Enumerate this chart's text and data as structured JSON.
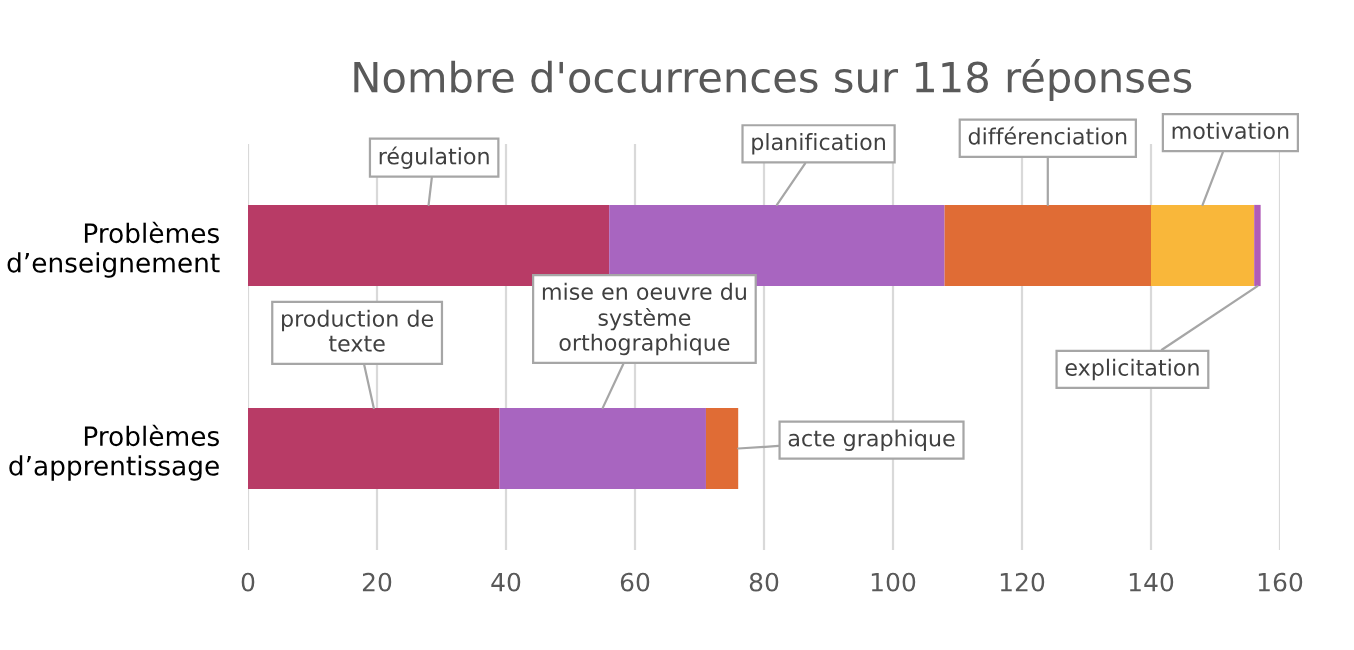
{
  "chart_data": {
    "type": "bar",
    "orientation": "horizontal",
    "stacked": true,
    "title": "Nombre d'occurrences sur 118 réponses",
    "categories": [
      "Problèmes\nd’enseignement",
      "Problèmes\nd’apprentissage"
    ],
    "series": [
      {
        "name": "régulation",
        "color": "#b83b66",
        "values": [
          56,
          null
        ]
      },
      {
        "name": "planification",
        "color": "#a865c0",
        "values": [
          52,
          null
        ]
      },
      {
        "name": "différenciation",
        "color": "#e06c35",
        "values": [
          32,
          null
        ]
      },
      {
        "name": "motivation",
        "color": "#f9b73a",
        "values": [
          16,
          null
        ]
      },
      {
        "name": "explicitation",
        "color": "#b05cb8",
        "values": [
          1,
          null
        ]
      },
      {
        "name": "production de\ntexte",
        "color": "#b83b66",
        "values": [
          null,
          39
        ]
      },
      {
        "name": "mise en oeuvre du\nsystème\northographique",
        "color": "#a865c0",
        "values": [
          null,
          32
        ]
      },
      {
        "name": "acte graphique",
        "color": "#e06c35",
        "values": [
          null,
          5
        ]
      }
    ],
    "xlim": [
      0,
      160
    ],
    "xticks": [
      0,
      20,
      40,
      60,
      80,
      100,
      120,
      140,
      160
    ],
    "grid": "x"
  }
}
